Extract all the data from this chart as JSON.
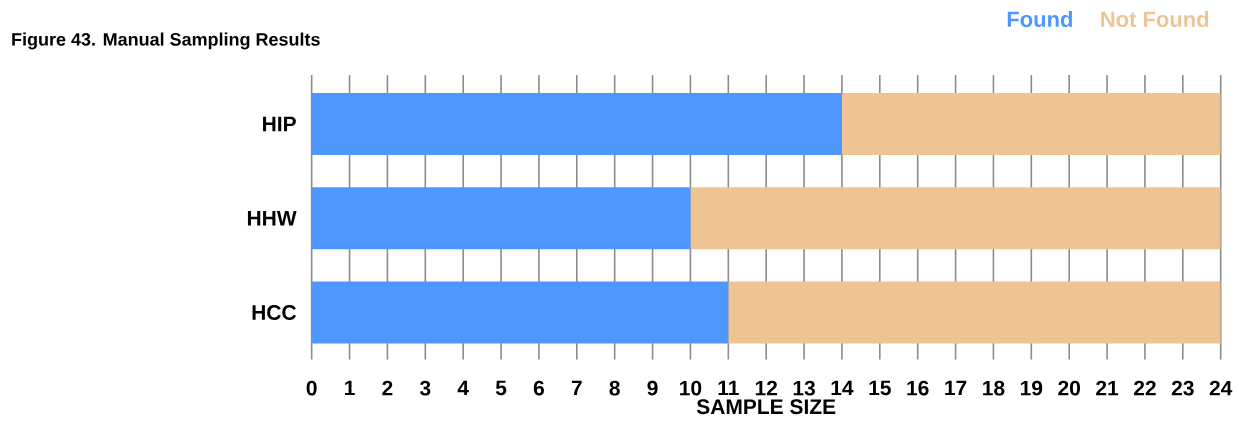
{
  "chart_data": {
    "type": "bar",
    "orientation": "horizontal",
    "stacked": true,
    "title": "Figure 43. Manual Sampling Results",
    "xlabel": "SAMPLE SIZE",
    "categories": [
      "HIP",
      "HHW",
      "HCC"
    ],
    "series": [
      {
        "name": "Found",
        "color": "#4f97fe",
        "values": [
          14,
          10,
          11
        ]
      },
      {
        "name": "Not Found",
        "color": "#efc494",
        "values": [
          10,
          14,
          13
        ]
      }
    ],
    "xlim": [
      0,
      24
    ],
    "xticks": [
      0,
      1,
      2,
      3,
      4,
      5,
      6,
      7,
      8,
      9,
      10,
      11,
      12,
      13,
      14,
      15,
      16,
      17,
      18,
      19,
      20,
      21,
      22,
      23,
      24
    ],
    "grid": "x",
    "legend": "top right"
  }
}
